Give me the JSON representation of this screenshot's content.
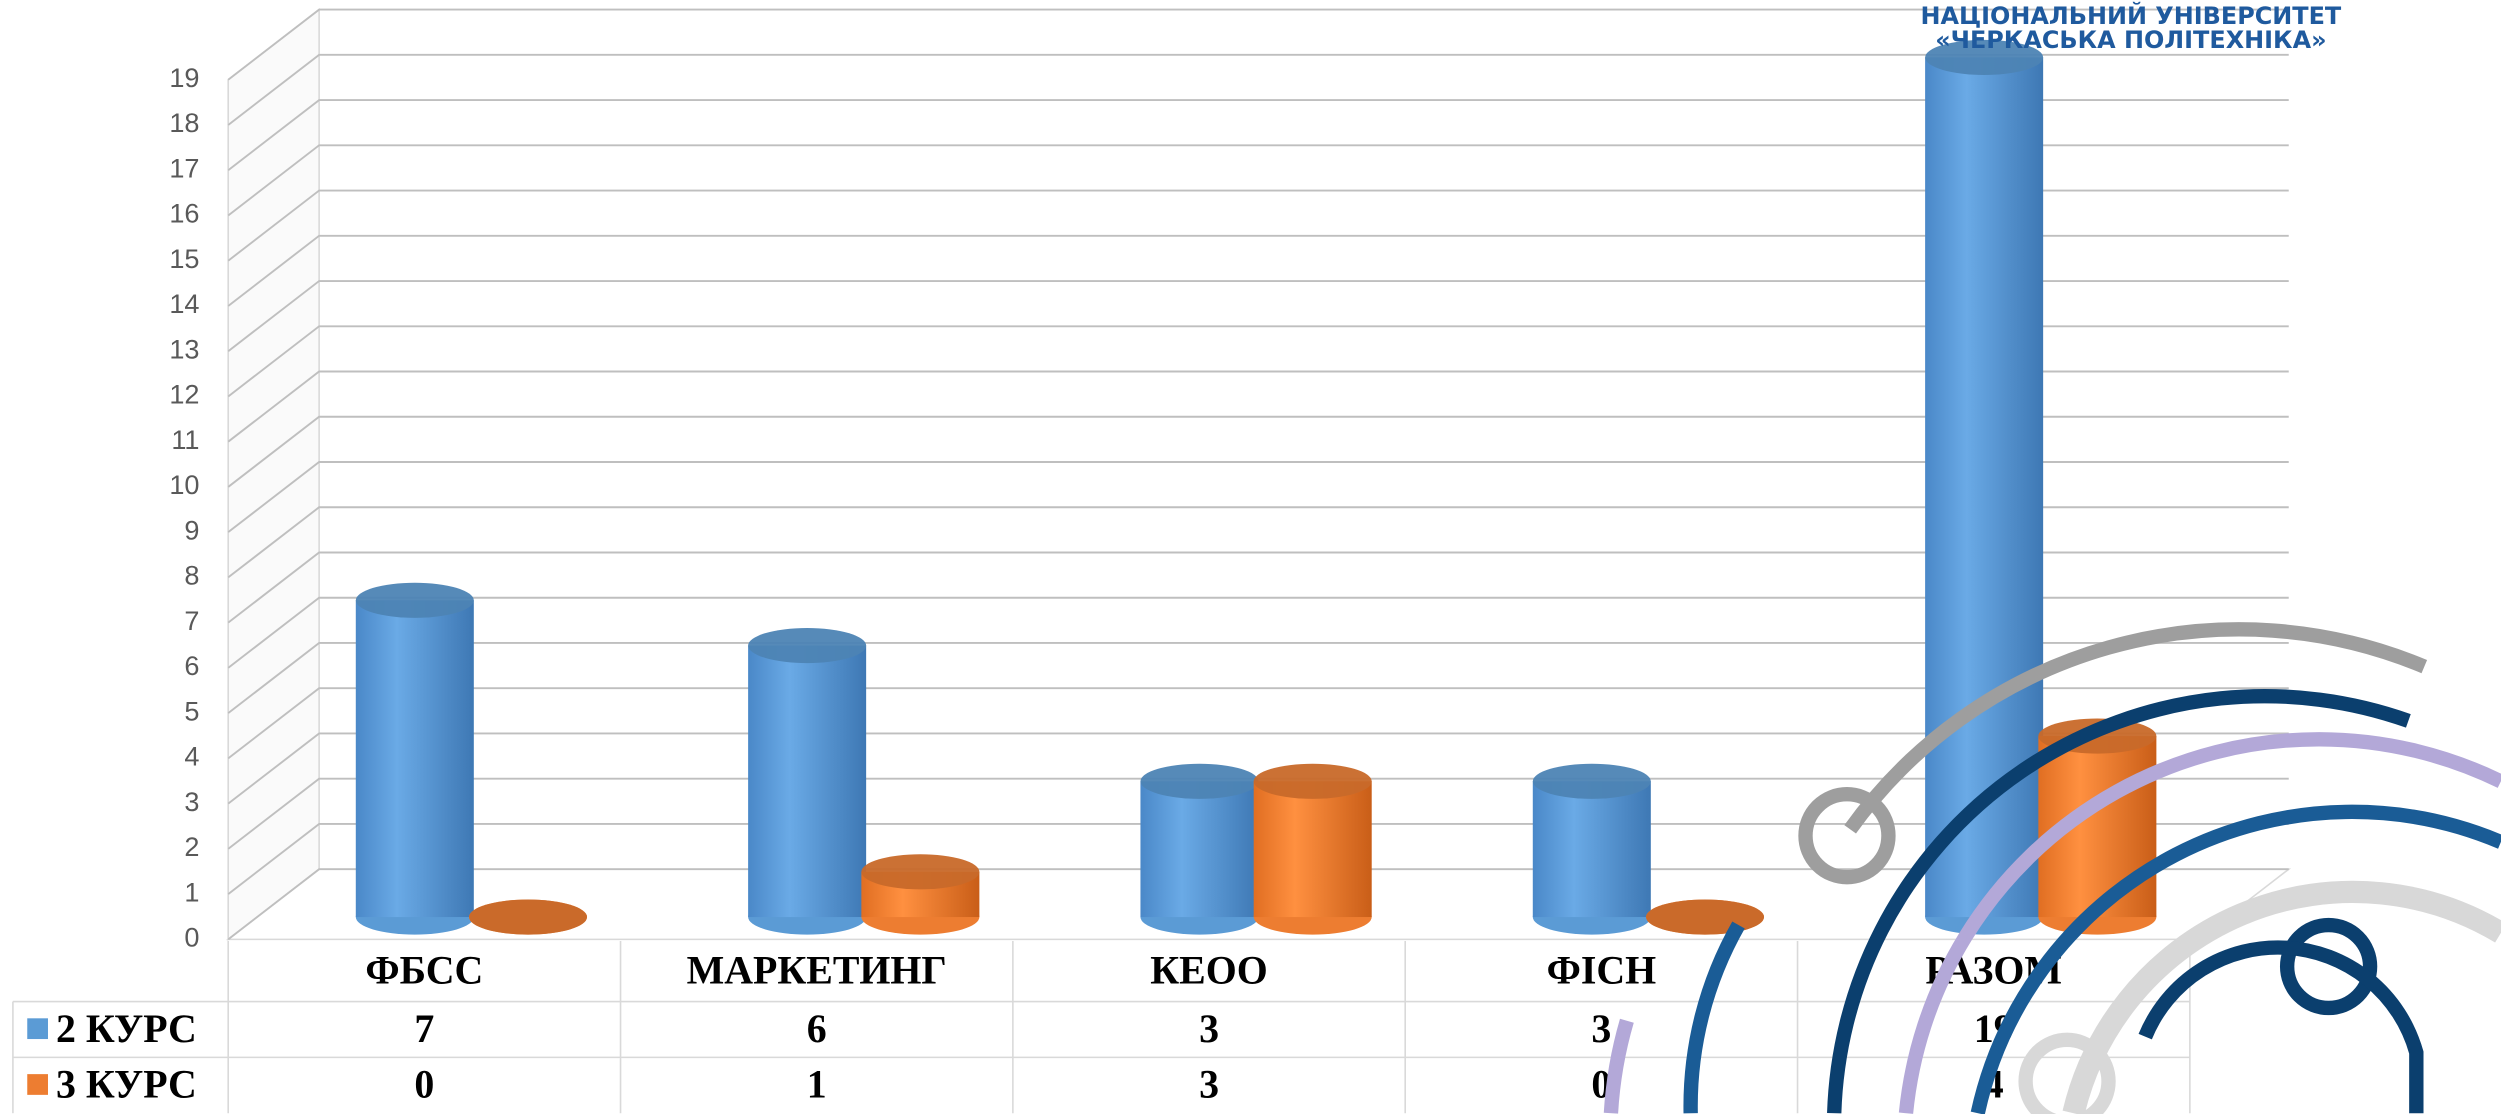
{
  "chart_data": {
    "type": "bar3d",
    "categories": [
      "ФБСС",
      "МАРКЕТИНГ",
      "КЕОО",
      "ФІСН",
      "РАЗОМ"
    ],
    "series": [
      {
        "name": "2 КУРС",
        "color": "#5b9bd5",
        "values": [
          7,
          6,
          3,
          3,
          19
        ]
      },
      {
        "name": "3 КУРС",
        "color": "#ed7d31",
        "values": [
          0,
          1,
          3,
          0,
          4
        ]
      }
    ],
    "ylim": [
      0,
      19
    ],
    "yticks": [
      0,
      1,
      2,
      3,
      4,
      5,
      6,
      7,
      8,
      9,
      10,
      11,
      12,
      13,
      14,
      15,
      16,
      17,
      18,
      19
    ],
    "grid": true
  },
  "logo": {
    "line1": "НАЦІОНАЛЬНИЙ УНІВЕРСИТЕТ",
    "line2": "«ЧЕРКАСЬКА ПОЛІТЕХНІКА»"
  }
}
